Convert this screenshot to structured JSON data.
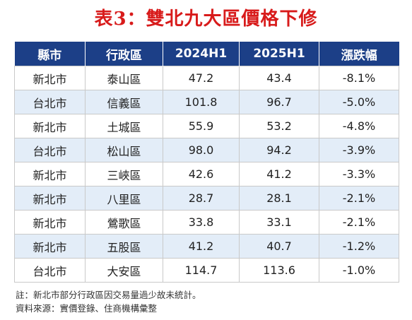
{
  "title": "表3：雙北九大區價格下修",
  "chart_data": {
    "type": "table",
    "columns": [
      "縣市",
      "行政區",
      "2024H1",
      "2025H1",
      "漲跌幅"
    ],
    "rows": [
      [
        "新北市",
        "泰山區",
        "47.2",
        "43.4",
        "-8.1%"
      ],
      [
        "台北市",
        "信義區",
        "101.8",
        "96.7",
        "-5.0%"
      ],
      [
        "新北市",
        "土城區",
        "55.9",
        "53.2",
        "-4.8%"
      ],
      [
        "台北市",
        "松山區",
        "98.0",
        "94.2",
        "-3.9%"
      ],
      [
        "新北市",
        "三峽區",
        "42.6",
        "41.2",
        "-3.3%"
      ],
      [
        "新北市",
        "八里區",
        "28.7",
        "28.1",
        "-2.1%"
      ],
      [
        "新北市",
        "鶯歌區",
        "33.8",
        "33.1",
        "-2.1%"
      ],
      [
        "新北市",
        "五股區",
        "41.2",
        "40.7",
        "-1.2%"
      ],
      [
        "台北市",
        "大安區",
        "114.7",
        "113.6",
        "-1.0%"
      ]
    ],
    "colors": {
      "header_bg": "#1c3f87",
      "header_text": "#ffffff",
      "alt_row_bg": "#e3edf8",
      "title": "#d81b1b"
    }
  },
  "notes": {
    "note": "註：新北市部分行政區因交易量過少故未統計。",
    "source": "資料來源：實價登錄、住商機構彙整"
  }
}
